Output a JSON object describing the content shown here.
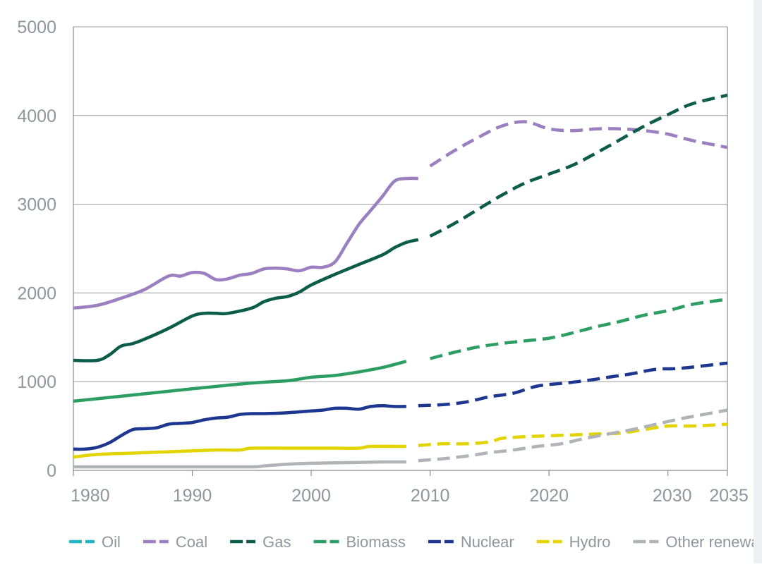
{
  "chart_data": {
    "type": "line",
    "title": "",
    "xlabel": "",
    "ylabel": "",
    "xlim": [
      1980,
      2035
    ],
    "ylim": [
      0,
      5000
    ],
    "grid": true,
    "legend_position": "bottom",
    "y_ticks": [
      {
        "value": 0,
        "label": "0"
      },
      {
        "value": 1000,
        "label": "1000"
      },
      {
        "value": 2000,
        "label": "2000"
      },
      {
        "value": 3000,
        "label": "3000"
      },
      {
        "value": 4000,
        "label": "4000"
      },
      {
        "value": 5000,
        "label": "5000"
      }
    ],
    "x_ticks": [
      {
        "value": 1980,
        "label": "1980"
      },
      {
        "value": 1990,
        "label": "1990"
      },
      {
        "value": 2000,
        "label": "2000"
      },
      {
        "value": 2010,
        "label": "2010"
      },
      {
        "value": 2020,
        "label": "2020"
      },
      {
        "value": 2030,
        "label": "2030"
      },
      {
        "value": 2035,
        "label": "2035"
      }
    ],
    "historical_end": 2008,
    "projection_start": 2009,
    "series": [
      {
        "name": "Oil",
        "color": "#1fb7c6",
        "legend_only": true,
        "historical": [],
        "projected": []
      },
      {
        "name": "Coal",
        "color": "#9b7fc1",
        "historical": [
          [
            1980,
            1830
          ],
          [
            1982,
            1860
          ],
          [
            1984,
            1940
          ],
          [
            1986,
            2040
          ],
          [
            1988,
            2190
          ],
          [
            1989,
            2190
          ],
          [
            1990,
            2230
          ],
          [
            1991,
            2220
          ],
          [
            1992,
            2150
          ],
          [
            1993,
            2160
          ],
          [
            1994,
            2200
          ],
          [
            1995,
            2220
          ],
          [
            1996,
            2270
          ],
          [
            1997,
            2280
          ],
          [
            1998,
            2270
          ],
          [
            1999,
            2250
          ],
          [
            2000,
            2290
          ],
          [
            2001,
            2290
          ],
          [
            2002,
            2350
          ],
          [
            2003,
            2560
          ],
          [
            2004,
            2770
          ],
          [
            2005,
            2930
          ],
          [
            2006,
            3090
          ],
          [
            2007,
            3260
          ],
          [
            2008,
            3290
          ],
          [
            2009,
            3290
          ]
        ],
        "projected": [
          [
            2010,
            3430
          ],
          [
            2012,
            3600
          ],
          [
            2014,
            3750
          ],
          [
            2016,
            3880
          ],
          [
            2018,
            3930
          ],
          [
            2020,
            3850
          ],
          [
            2022,
            3830
          ],
          [
            2024,
            3850
          ],
          [
            2026,
            3850
          ],
          [
            2028,
            3830
          ],
          [
            2030,
            3790
          ],
          [
            2032,
            3720
          ],
          [
            2035,
            3640
          ]
        ]
      },
      {
        "name": "Gas",
        "color": "#0b5c48",
        "historical": [
          [
            1980,
            1240
          ],
          [
            1982,
            1240
          ],
          [
            1983,
            1300
          ],
          [
            1984,
            1400
          ],
          [
            1985,
            1430
          ],
          [
            1986,
            1480
          ],
          [
            1988,
            1600
          ],
          [
            1990,
            1740
          ],
          [
            1991,
            1770
          ],
          [
            1992,
            1770
          ],
          [
            1993,
            1770
          ],
          [
            1995,
            1830
          ],
          [
            1996,
            1900
          ],
          [
            1997,
            1940
          ],
          [
            1998,
            1960
          ],
          [
            1999,
            2010
          ],
          [
            2000,
            2090
          ],
          [
            2002,
            2210
          ],
          [
            2004,
            2320
          ],
          [
            2006,
            2430
          ],
          [
            2007,
            2510
          ],
          [
            2008,
            2570
          ],
          [
            2009,
            2600
          ]
        ],
        "projected": [
          [
            2010,
            2640
          ],
          [
            2012,
            2780
          ],
          [
            2014,
            2940
          ],
          [
            2016,
            3100
          ],
          [
            2018,
            3240
          ],
          [
            2020,
            3340
          ],
          [
            2022,
            3440
          ],
          [
            2024,
            3580
          ],
          [
            2026,
            3730
          ],
          [
            2028,
            3880
          ],
          [
            2030,
            4010
          ],
          [
            2032,
            4130
          ],
          [
            2035,
            4230
          ]
        ]
      },
      {
        "name": "Biomass",
        "color": "#2d9e63",
        "historical": [
          [
            1980,
            780
          ],
          [
            1985,
            850
          ],
          [
            1990,
            920
          ],
          [
            1995,
            985
          ],
          [
            1998,
            1010
          ],
          [
            2000,
            1050
          ],
          [
            2002,
            1070
          ],
          [
            2004,
            1110
          ],
          [
            2006,
            1160
          ],
          [
            2008,
            1230
          ]
        ],
        "projected": [
          [
            2010,
            1260
          ],
          [
            2012,
            1330
          ],
          [
            2014,
            1390
          ],
          [
            2016,
            1430
          ],
          [
            2018,
            1460
          ],
          [
            2020,
            1490
          ],
          [
            2022,
            1550
          ],
          [
            2024,
            1620
          ],
          [
            2026,
            1680
          ],
          [
            2028,
            1750
          ],
          [
            2030,
            1800
          ],
          [
            2032,
            1870
          ],
          [
            2035,
            1930
          ]
        ]
      },
      {
        "name": "Nuclear",
        "color": "#1d3790",
        "historical": [
          [
            1980,
            240
          ],
          [
            1981,
            240
          ],
          [
            1982,
            260
          ],
          [
            1983,
            310
          ],
          [
            1984,
            390
          ],
          [
            1985,
            460
          ],
          [
            1986,
            470
          ],
          [
            1987,
            480
          ],
          [
            1988,
            520
          ],
          [
            1989,
            530
          ],
          [
            1990,
            540
          ],
          [
            1991,
            570
          ],
          [
            1992,
            590
          ],
          [
            1993,
            600
          ],
          [
            1994,
            630
          ],
          [
            1995,
            640
          ],
          [
            1996,
            640
          ],
          [
            1998,
            650
          ],
          [
            2000,
            670
          ],
          [
            2001,
            680
          ],
          [
            2002,
            700
          ],
          [
            2003,
            700
          ],
          [
            2004,
            690
          ],
          [
            2005,
            720
          ],
          [
            2006,
            730
          ],
          [
            2007,
            720
          ],
          [
            2008,
            720
          ]
        ],
        "projected": [
          [
            2009,
            730
          ],
          [
            2011,
            740
          ],
          [
            2013,
            770
          ],
          [
            2015,
            830
          ],
          [
            2017,
            870
          ],
          [
            2019,
            950
          ],
          [
            2021,
            980
          ],
          [
            2023,
            1010
          ],
          [
            2025,
            1050
          ],
          [
            2027,
            1090
          ],
          [
            2029,
            1140
          ],
          [
            2031,
            1150
          ],
          [
            2035,
            1210
          ]
        ]
      },
      {
        "name": "Hydro",
        "color": "#e3d400",
        "historical": [
          [
            1980,
            150
          ],
          [
            1982,
            180
          ],
          [
            1985,
            195
          ],
          [
            1990,
            220
          ],
          [
            1992,
            230
          ],
          [
            1994,
            230
          ],
          [
            1995,
            250
          ],
          [
            1998,
            250
          ],
          [
            2000,
            250
          ],
          [
            2002,
            250
          ],
          [
            2004,
            250
          ],
          [
            2005,
            270
          ],
          [
            2008,
            270
          ]
        ],
        "projected": [
          [
            2009,
            280
          ],
          [
            2011,
            300
          ],
          [
            2013,
            300
          ],
          [
            2015,
            320
          ],
          [
            2016,
            360
          ],
          [
            2018,
            380
          ],
          [
            2020,
            390
          ],
          [
            2022,
            400
          ],
          [
            2024,
            410
          ],
          [
            2026,
            420
          ],
          [
            2028,
            460
          ],
          [
            2030,
            500
          ],
          [
            2032,
            500
          ],
          [
            2035,
            520
          ]
        ]
      },
      {
        "name": "Other renewables",
        "color": "#b1b4b6",
        "historical": [
          [
            1980,
            40
          ],
          [
            1985,
            40
          ],
          [
            1990,
            40
          ],
          [
            1995,
            40
          ],
          [
            1996,
            50
          ],
          [
            1998,
            70
          ],
          [
            2000,
            80
          ],
          [
            2004,
            90
          ],
          [
            2006,
            95
          ],
          [
            2008,
            95
          ]
        ],
        "projected": [
          [
            2009,
            110
          ],
          [
            2011,
            130
          ],
          [
            2013,
            160
          ],
          [
            2015,
            200
          ],
          [
            2017,
            230
          ],
          [
            2019,
            270
          ],
          [
            2021,
            300
          ],
          [
            2023,
            360
          ],
          [
            2025,
            410
          ],
          [
            2027,
            460
          ],
          [
            2029,
            520
          ],
          [
            2031,
            580
          ],
          [
            2033,
            630
          ],
          [
            2035,
            680
          ]
        ]
      }
    ]
  }
}
